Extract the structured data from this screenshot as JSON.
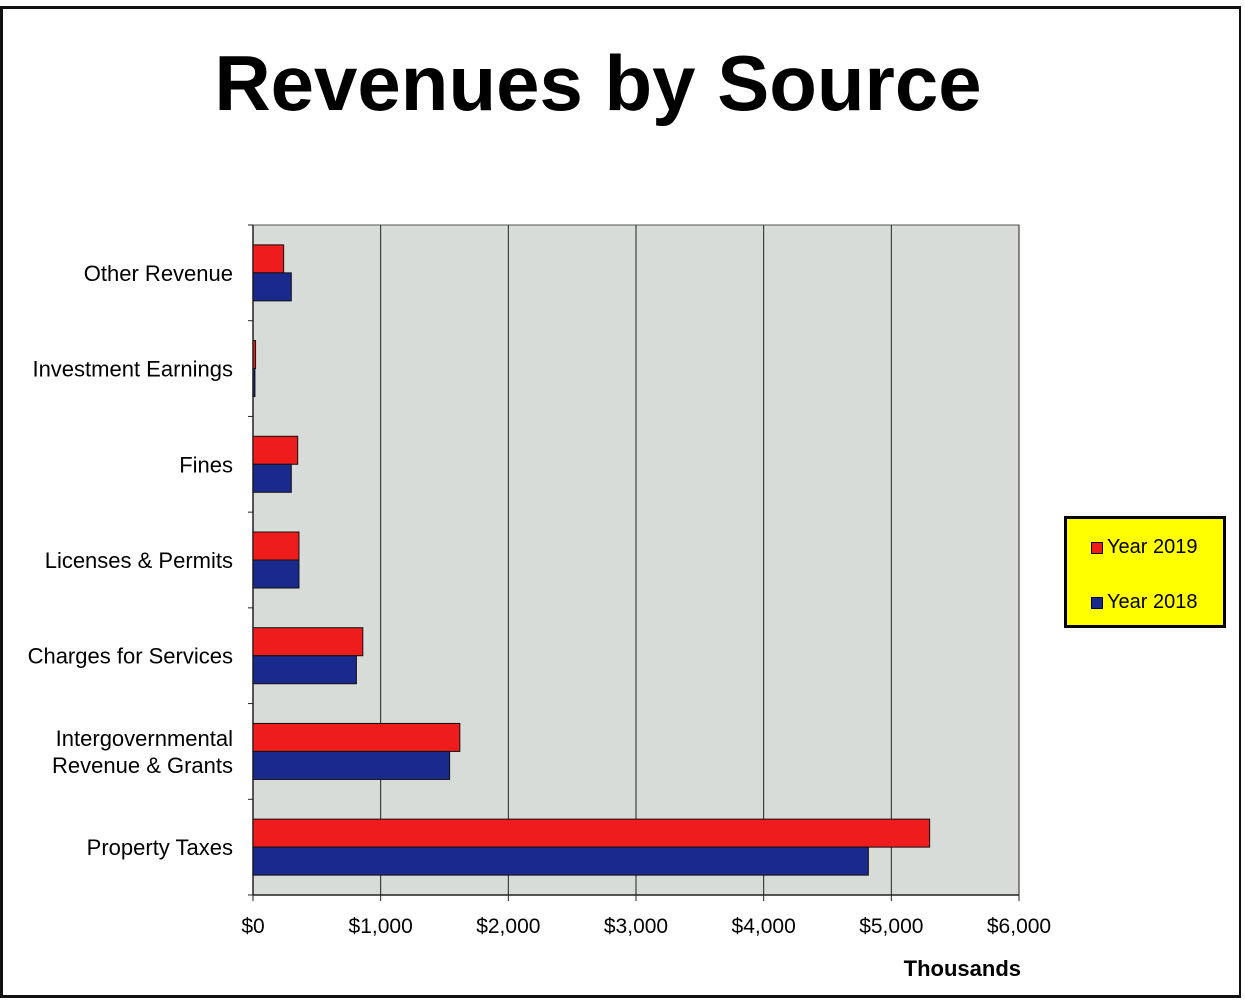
{
  "chart_data": {
    "type": "bar",
    "orientation": "horizontal",
    "title": "Revenues by Source",
    "xlabel": "Thousands",
    "categories": [
      "Other Revenue",
      "Investment Earnings",
      "Fines",
      "Licenses & Permits",
      "Charges for Services",
      "Intergovernmental Revenue & Grants",
      "Property Taxes"
    ],
    "category_lines": [
      [
        "Other Revenue"
      ],
      [
        "Investment Earnings"
      ],
      [
        "Fines"
      ],
      [
        "Licenses & Permits"
      ],
      [
        "Charges for Services"
      ],
      [
        "Intergovernmental",
        "Revenue & Grants"
      ],
      [
        "Property Taxes"
      ]
    ],
    "series": [
      {
        "name": "Year 2019",
        "color": "#ee1c1c",
        "values": [
          240,
          20,
          350,
          360,
          860,
          1620,
          5300
        ]
      },
      {
        "name": "Year 2018",
        "color": "#1a2a8c",
        "values": [
          300,
          15,
          300,
          360,
          810,
          1540,
          4820
        ]
      }
    ],
    "xlim": [
      0,
      6000
    ],
    "x_ticks": [
      "$0",
      "$1,000",
      "$2,000",
      "$3,000",
      "$4,000",
      "$5,000",
      "$6,000"
    ],
    "grid": true,
    "plot_background": "#d8dcd8",
    "legend_position": "right",
    "legend_background": "#ffff00"
  }
}
